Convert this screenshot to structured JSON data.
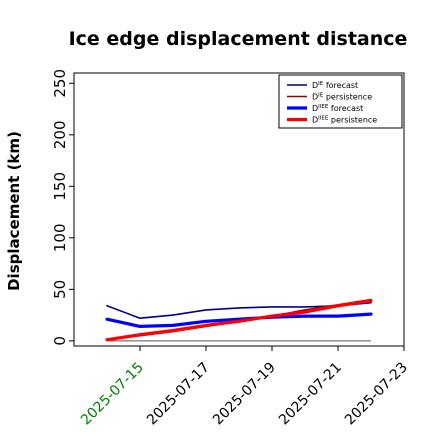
{
  "chart_data": {
    "type": "line",
    "title": "Ice edge displacement distance",
    "xlabel": "",
    "ylabel": "Displacement (km)",
    "ylim": [
      -5,
      260
    ],
    "xlim": [
      -1,
      9
    ],
    "yticks": [
      0,
      50,
      100,
      150,
      200,
      250
    ],
    "x": [
      0,
      1,
      2,
      3,
      4,
      5,
      6,
      7,
      8
    ],
    "x_tick_positions": [
      1,
      3,
      5,
      7,
      9
    ],
    "x_tick_labels": [
      "2025-07-15",
      "2025-07-17",
      "2025-07-19",
      "2025-07-21",
      "2025-07-23"
    ],
    "x_tick_colors": [
      "#008000",
      "#000000",
      "#000000",
      "#000000",
      "#000000"
    ],
    "zero_line": true,
    "grid": false,
    "legend_position": "top-right",
    "series": [
      {
        "name": "D^IE forecast",
        "legend": {
          "base": "D",
          "sup": "IE",
          "text": " forecast"
        },
        "color": "#00008b",
        "width": 1.6,
        "values": [
          34,
          22,
          25,
          30,
          32,
          33,
          33,
          34,
          37
        ]
      },
      {
        "name": "D^IE persistence",
        "legend": {
          "base": "D",
          "sup": "IE",
          "text": " persistence"
        },
        "color": "#8b0000",
        "width": 1.6,
        "values": [
          1,
          5,
          9,
          14,
          19,
          24,
          30,
          35,
          40
        ]
      },
      {
        "name": "D^IIEE forecast",
        "legend": {
          "base": "D",
          "sup": "IIEE",
          "text": " forecast"
        },
        "color": "#0000ff",
        "width": 3.2,
        "values": [
          21,
          14,
          15,
          19,
          21,
          23,
          24,
          24,
          26
        ]
      },
      {
        "name": "D^IIEE persistence",
        "legend": {
          "base": "D",
          "sup": "IIEE",
          "text": " persistence"
        },
        "color": "#ff0000",
        "width": 3.2,
        "values": [
          1,
          6,
          10,
          15,
          19,
          24,
          28,
          34,
          39
        ]
      }
    ]
  }
}
